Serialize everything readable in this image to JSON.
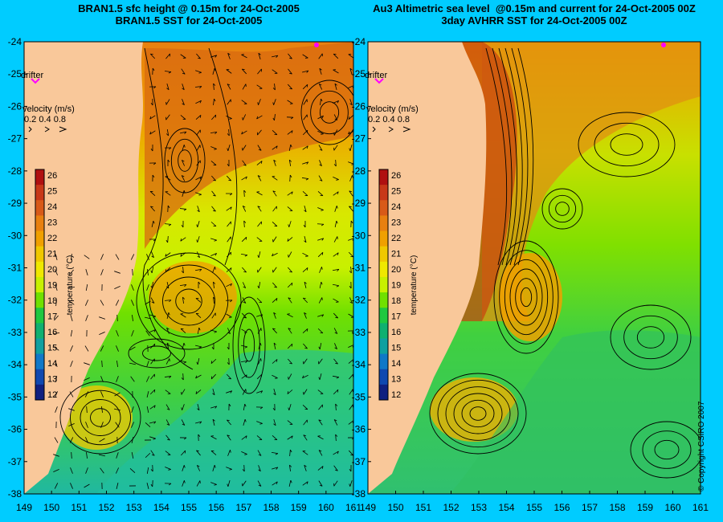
{
  "titles": {
    "left": [
      "BRAN1.5 sfc height @ 0.15m for 24-Oct-2005",
      "BRAN1.5 SST for 24-Oct-2005"
    ],
    "right": [
      "Au3 Altimetric sea level  @0.15m and current for 24-Oct-2005 00Z",
      "3day AVHRR SST for 24-Oct-2005 00Z"
    ]
  },
  "axes": {
    "lon_ticks": [
      149,
      150,
      151,
      152,
      153,
      154,
      155,
      156,
      157,
      158,
      159,
      160,
      161
    ],
    "lat_ticks": [
      -24,
      -25,
      -26,
      -27,
      -28,
      -29,
      -30,
      -31,
      -32,
      -33,
      -34,
      -35,
      -36,
      -37,
      -38
    ],
    "lon_range": [
      149,
      161
    ],
    "lat_range": [
      -38,
      -24
    ]
  },
  "legend": {
    "drifter_label": "drifter",
    "velocity_title": "velocity (m/s)",
    "velocity_values": "0.2 0.4 0.8",
    "colorbar_label": "temperature (°C)",
    "colorbar_ticks": [
      26,
      25,
      24,
      23,
      22,
      21,
      20,
      19,
      18,
      17,
      16,
      15,
      14,
      13,
      12
    ],
    "colorbar_colors": [
      "#b01010",
      "#c83818",
      "#d85a18",
      "#e88010",
      "#f0a000",
      "#f0c800",
      "#f0e800",
      "#c8f000",
      "#70e000",
      "#20c840",
      "#10b070",
      "#10a0a0",
      "#1078c8",
      "#1048b0",
      "#102080"
    ]
  },
  "colors": {
    "land": "#f9c89a",
    "background": "#00ccff",
    "drifter": "#ff00ff"
  },
  "copyright": "© Copyright CSIRO 2007"
}
